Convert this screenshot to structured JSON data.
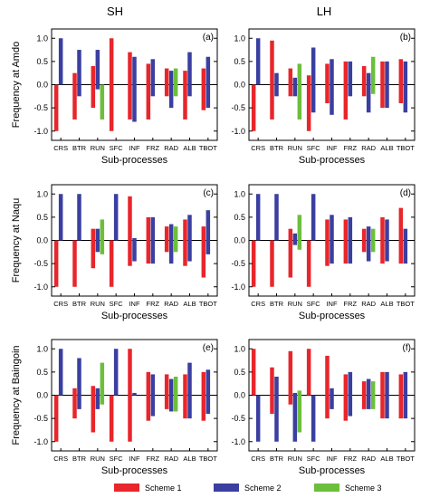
{
  "figure": {
    "column_titles": [
      "SH",
      "LH"
    ],
    "legend": [
      {
        "label": "Scheme 1",
        "color": "#e8262b"
      },
      {
        "label": "Scheme 2",
        "color": "#3a3fa0"
      },
      {
        "label": "Scheme 3",
        "color": "#6cbf3c"
      }
    ]
  },
  "chart_data": [
    {
      "type": "bar",
      "panel": "(a)",
      "column": "SH",
      "ylabel": "Frequency at Amdo",
      "xlabel": "Sub-processes",
      "ylim": [
        -1.2,
        1.2
      ],
      "yticks": [
        -1.0,
        -0.5,
        0.0,
        0.5,
        1.0
      ],
      "categories": [
        "CRS",
        "BTR",
        "RUN",
        "SFC",
        "INF",
        "FRZ",
        "RAD",
        "ALB",
        "TBOT"
      ],
      "series": [
        {
          "name": "Scheme 1",
          "values": [
            [
              -1.0,
              0.0
            ],
            [
              -0.75,
              0.25
            ],
            [
              -0.5,
              0.4
            ],
            [
              -1.0,
              1.0
            ],
            [
              -0.75,
              0.7
            ],
            [
              -0.75,
              0.45
            ],
            [
              -0.25,
              0.35
            ],
            [
              -0.75,
              0.3
            ],
            [
              -0.55,
              0.35
            ]
          ]
        },
        {
          "name": "Scheme 2",
          "values": [
            [
              0.0,
              1.0
            ],
            [
              -0.25,
              0.75
            ],
            [
              -0.1,
              0.75
            ],
            null,
            [
              -0.8,
              0.6
            ],
            [
              -0.25,
              0.55
            ],
            [
              -0.5,
              0.3
            ],
            [
              -0.25,
              0.7
            ],
            [
              -0.5,
              0.6
            ]
          ]
        },
        {
          "name": "Scheme 3",
          "values": [
            null,
            null,
            [
              -0.75,
              0.0
            ],
            null,
            null,
            null,
            [
              -0.25,
              0.35
            ],
            null,
            null
          ]
        }
      ]
    },
    {
      "type": "bar",
      "panel": "(b)",
      "column": "LH",
      "ylabel": "",
      "xlabel": "Sub-processes",
      "ylim": [
        -1.2,
        1.2
      ],
      "yticks": [
        -1.0,
        -0.5,
        0.0,
        0.5,
        1.0
      ],
      "categories": [
        "CRS",
        "BTR",
        "RUN",
        "SFC",
        "INF",
        "FRZ",
        "RAD",
        "ALB",
        "TBOT"
      ],
      "series": [
        {
          "name": "Scheme 1",
          "values": [
            [
              -1.0,
              0.0
            ],
            [
              -0.75,
              0.95
            ],
            [
              -0.25,
              0.35
            ],
            [
              -1.0,
              0.2
            ],
            [
              -0.4,
              0.45
            ],
            [
              -0.75,
              0.5
            ],
            [
              -0.25,
              0.4
            ],
            [
              -0.5,
              0.5
            ],
            [
              -0.4,
              0.55
            ]
          ]
        },
        {
          "name": "Scheme 2",
          "values": [
            [
              0.0,
              1.0
            ],
            [
              -0.25,
              0.25
            ],
            [
              -0.25,
              0.15
            ],
            [
              -0.6,
              0.8
            ],
            [
              -0.65,
              0.55
            ],
            [
              -0.25,
              0.5
            ],
            [
              -0.6,
              0.25
            ],
            [
              -0.5,
              0.5
            ],
            [
              -0.6,
              0.5
            ]
          ]
        },
        {
          "name": "Scheme 3",
          "values": [
            null,
            null,
            [
              -0.75,
              0.45
            ],
            null,
            null,
            null,
            [
              -0.2,
              0.6
            ],
            null,
            null
          ]
        }
      ]
    },
    {
      "type": "bar",
      "panel": "(c)",
      "column": "SH",
      "ylabel": "Frequency at Naqu",
      "xlabel": "Sub-processes",
      "ylim": [
        -1.2,
        1.2
      ],
      "yticks": [
        -1.0,
        -0.5,
        0.0,
        0.5,
        1.0
      ],
      "categories": [
        "CRS",
        "BTR",
        "RUN",
        "SFC",
        "INF",
        "FRZ",
        "RAD",
        "ALB",
        "TBOT"
      ],
      "series": [
        {
          "name": "Scheme 1",
          "values": [
            [
              -1.0,
              0.0
            ],
            [
              -1.0,
              0.0
            ],
            [
              -0.6,
              0.25
            ],
            [
              -1.0,
              0.0
            ],
            [
              -0.55,
              0.95
            ],
            [
              -0.5,
              0.5
            ],
            [
              -0.25,
              0.3
            ],
            [
              -0.55,
              0.45
            ],
            [
              -0.8,
              0.3
            ]
          ]
        },
        {
          "name": "Scheme 2",
          "values": [
            [
              0.0,
              1.0
            ],
            [
              0.0,
              1.0
            ],
            [
              -0.25,
              0.25
            ],
            [
              0.0,
              1.0
            ],
            [
              -0.45,
              0.05
            ],
            [
              -0.5,
              0.5
            ],
            [
              -0.5,
              0.35
            ],
            [
              -0.45,
              0.55
            ],
            [
              -0.3,
              0.65
            ]
          ]
        },
        {
          "name": "Scheme 3",
          "values": [
            null,
            null,
            [
              -0.3,
              0.45
            ],
            null,
            null,
            null,
            [
              -0.25,
              0.3
            ],
            null,
            null
          ]
        }
      ]
    },
    {
      "type": "bar",
      "panel": "(d)",
      "column": "LH",
      "ylabel": "",
      "xlabel": "Sub-processes",
      "ylim": [
        -1.2,
        1.2
      ],
      "yticks": [
        -1.0,
        -0.5,
        0.0,
        0.5,
        1.0
      ],
      "categories": [
        "CRS",
        "BTR",
        "RUN",
        "SFC",
        "INF",
        "FRZ",
        "RAD",
        "ALB",
        "TBOT"
      ],
      "series": [
        {
          "name": "Scheme 1",
          "values": [
            [
              -1.0,
              0.0
            ],
            [
              -1.0,
              0.0
            ],
            [
              -0.8,
              0.25
            ],
            [
              -1.0,
              0.0
            ],
            [
              -0.55,
              0.45
            ],
            [
              -0.5,
              0.45
            ],
            [
              -0.25,
              0.25
            ],
            [
              -0.5,
              0.5
            ],
            [
              -0.5,
              0.7
            ]
          ]
        },
        {
          "name": "Scheme 2",
          "values": [
            [
              0.0,
              1.0
            ],
            [
              0.0,
              1.0
            ],
            [
              -0.1,
              0.15
            ],
            [
              0.0,
              1.0
            ],
            [
              -0.5,
              0.55
            ],
            [
              -0.5,
              0.5
            ],
            [
              -0.45,
              0.3
            ],
            [
              -0.45,
              0.45
            ],
            [
              -0.5,
              0.25
            ]
          ]
        },
        {
          "name": "Scheme 3",
          "values": [
            null,
            null,
            [
              -0.2,
              0.55
            ],
            null,
            null,
            null,
            [
              -0.25,
              0.25
            ],
            null,
            null
          ]
        }
      ]
    },
    {
      "type": "bar",
      "panel": "(e)",
      "column": "SH",
      "ylabel": "Frequency at Baingoin",
      "xlabel": "Sub-processes",
      "ylim": [
        -1.2,
        1.2
      ],
      "yticks": [
        -1.0,
        -0.5,
        0.0,
        0.5,
        1.0
      ],
      "categories": [
        "CRS",
        "BTR",
        "RUN",
        "SFC",
        "INF",
        "FRZ",
        "RAD",
        "ALB",
        "TBOT"
      ],
      "series": [
        {
          "name": "Scheme 1",
          "values": [
            [
              -1.0,
              0.0
            ],
            [
              -0.5,
              0.15
            ],
            [
              -0.8,
              0.2
            ],
            [
              -1.0,
              0.0
            ],
            [
              -1.0,
              1.0
            ],
            [
              -0.55,
              0.5
            ],
            [
              -0.3,
              0.45
            ],
            [
              -0.5,
              0.45
            ],
            [
              -0.55,
              0.5
            ]
          ]
        },
        {
          "name": "Scheme 2",
          "values": [
            [
              0.0,
              1.0
            ],
            [
              -0.3,
              0.8
            ],
            [
              -0.3,
              0.15
            ],
            [
              0.0,
              1.0
            ],
            [
              0.0,
              0.05
            ],
            [
              -0.45,
              0.45
            ],
            [
              -0.35,
              0.35
            ],
            [
              -0.5,
              0.7
            ],
            [
              -0.4,
              0.55
            ]
          ]
        },
        {
          "name": "Scheme 3",
          "values": [
            null,
            null,
            [
              -0.2,
              0.7
            ],
            null,
            null,
            null,
            [
              -0.35,
              0.4
            ],
            null,
            null
          ]
        }
      ]
    },
    {
      "type": "bar",
      "panel": "(f)",
      "column": "LH",
      "ylabel": "",
      "xlabel": "Sub-processes",
      "ylim": [
        -1.2,
        1.2
      ],
      "yticks": [
        -1.0,
        -0.5,
        0.0,
        0.5,
        1.0
      ],
      "categories": [
        "CRS",
        "BTR",
        "RUN",
        "SFC",
        "INF",
        "FRZ",
        "RAD",
        "ALB",
        "TBOT"
      ],
      "series": [
        {
          "name": "Scheme 1",
          "values": [
            [
              0.0,
              1.0
            ],
            [
              -0.4,
              0.6
            ],
            [
              -0.2,
              0.95
            ],
            [
              0.0,
              1.0
            ],
            [
              -0.5,
              0.85
            ],
            [
              -0.55,
              0.45
            ],
            [
              -0.3,
              0.3
            ],
            [
              -0.5,
              0.5
            ],
            [
              -0.5,
              0.45
            ]
          ]
        },
        {
          "name": "Scheme 2",
          "values": [
            [
              -1.0,
              0.0
            ],
            [
              -1.0,
              0.4
            ],
            [
              -1.0,
              0.05
            ],
            [
              -1.0,
              0.0
            ],
            [
              -0.3,
              0.15
            ],
            [
              -0.45,
              0.5
            ],
            [
              -0.3,
              0.35
            ],
            [
              -0.5,
              0.5
            ],
            [
              -0.5,
              0.5
            ]
          ]
        },
        {
          "name": "Scheme 3",
          "values": [
            null,
            null,
            [
              -0.8,
              0.1
            ],
            null,
            null,
            null,
            [
              -0.3,
              0.3
            ],
            null,
            null
          ]
        }
      ]
    }
  ]
}
